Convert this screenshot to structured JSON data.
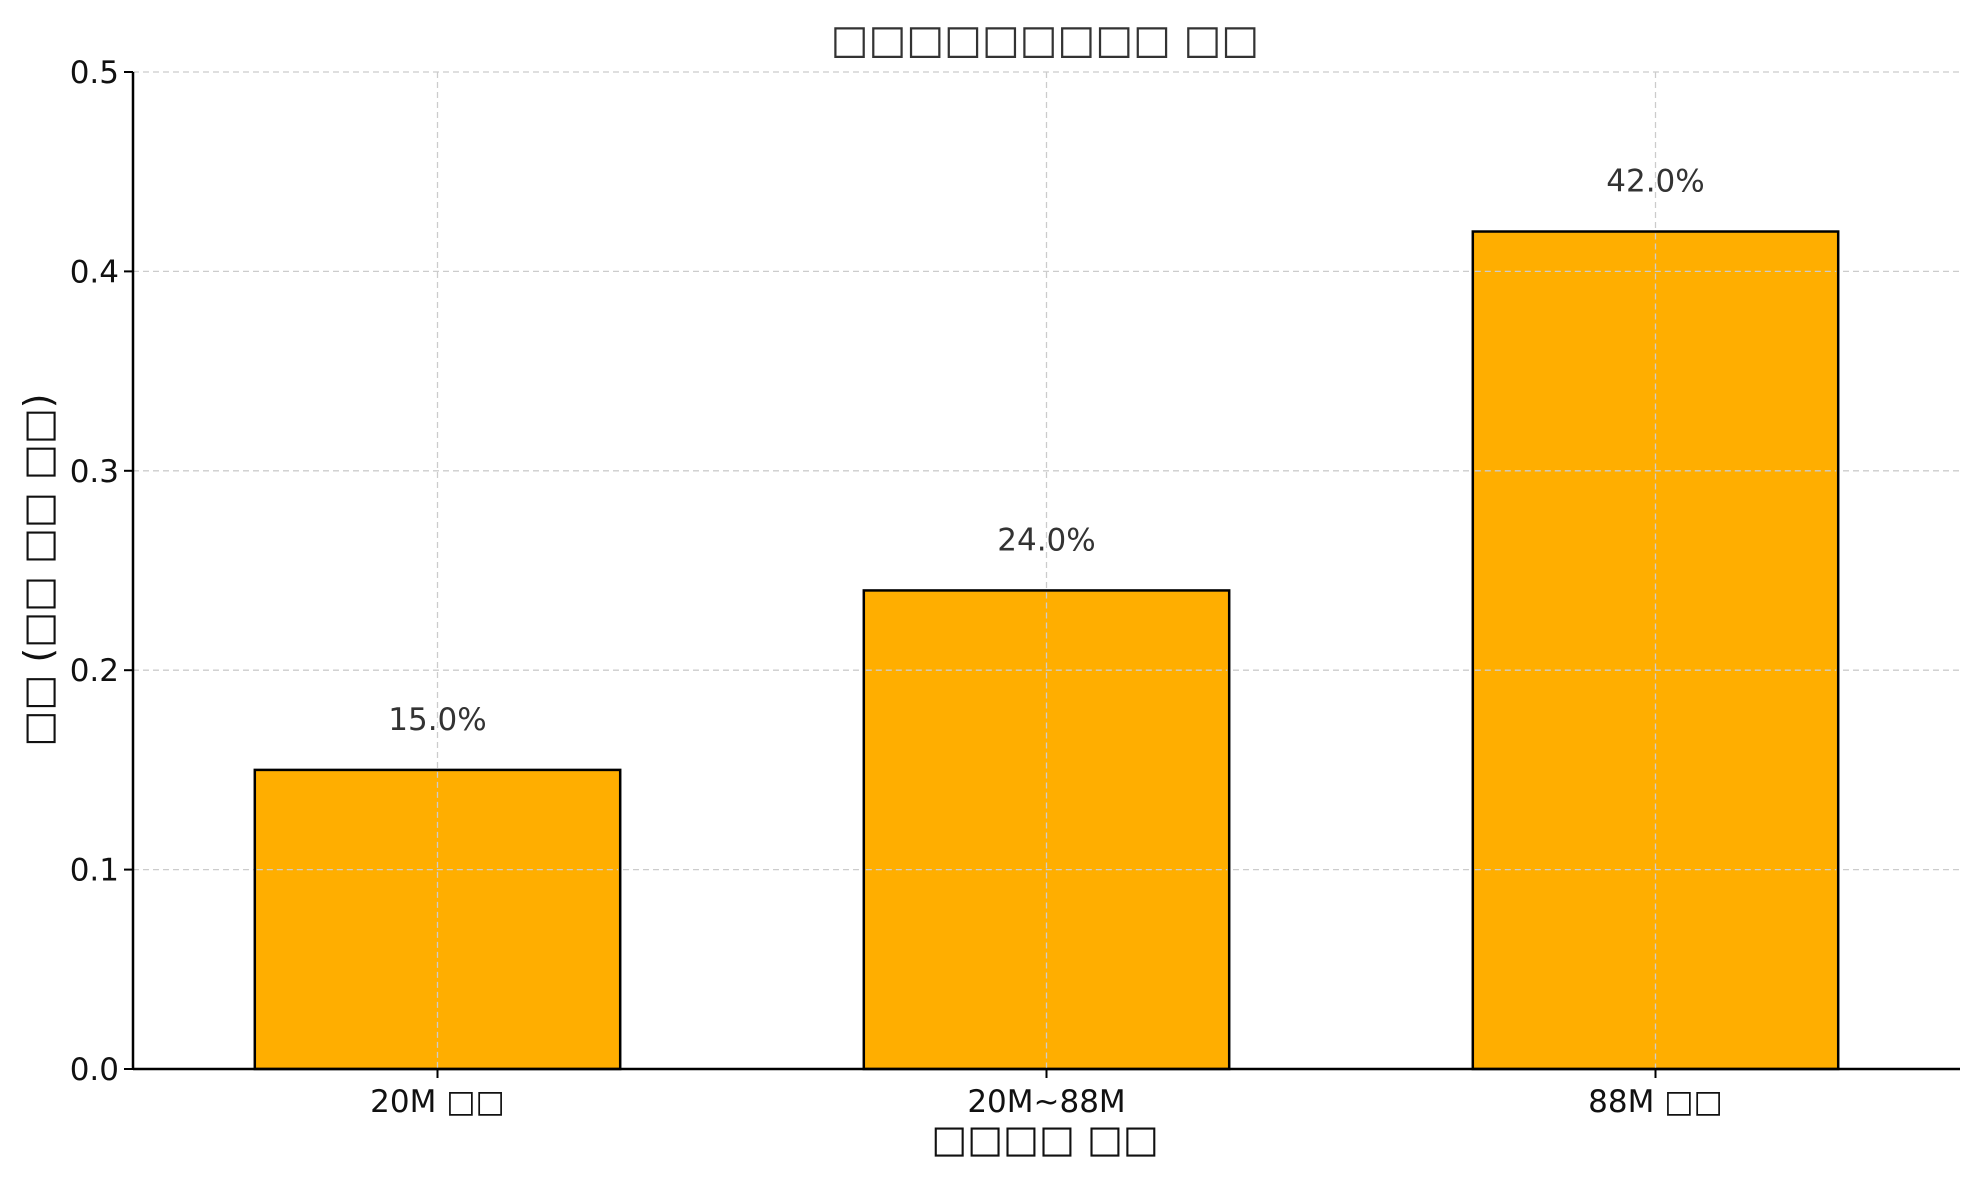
{
  "chart_data": {
    "type": "bar",
    "title": "□□□□□□□□□ □□",
    "xlabel": "□□□□ □□",
    "ylabel": "□□ (□□ □□ □□)",
    "categories": [
      "20M □□",
      "20M~88M",
      "88M □□"
    ],
    "values": [
      0.15,
      0.24,
      0.42
    ],
    "data_labels": [
      "15.0%",
      "24.0%",
      "42.0%"
    ],
    "ylim": [
      0,
      0.5
    ],
    "yticks": [
      "0.0",
      "0.1",
      "0.2",
      "0.3",
      "0.4",
      "0.5"
    ],
    "ytick_values": [
      0,
      0.1,
      0.2,
      0.3,
      0.4,
      0.5
    ],
    "bar_color": "#FFAE00",
    "grid": true,
    "legend": "none"
  }
}
